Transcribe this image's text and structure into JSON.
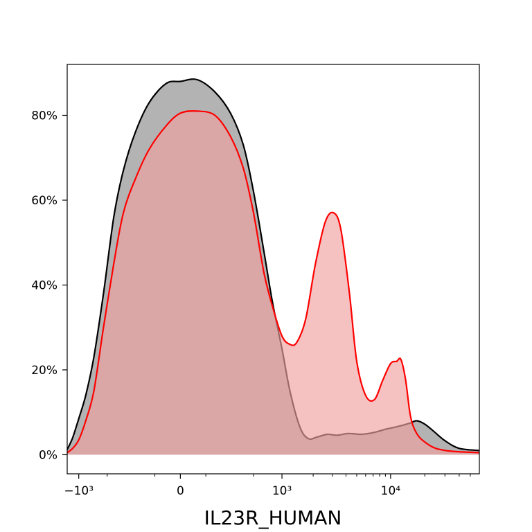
{
  "chart_data": {
    "type": "area",
    "title": "",
    "xlabel": "IL23R_HUMAN",
    "ylabel": "",
    "x_scale": "biexponential",
    "xlim": [
      -1300,
      60000
    ],
    "ylim": [
      -4.5,
      92
    ],
    "grid": false,
    "x_ticks": [
      {
        "value": -1000,
        "label": "−10³"
      },
      {
        "value": 0,
        "label": "0"
      },
      {
        "value": 1000,
        "label": "10³"
      },
      {
        "value": 10000,
        "label": "10⁴"
      }
    ],
    "y_ticks": [
      {
        "value": 0,
        "label": "0%"
      },
      {
        "value": 20,
        "label": "20%"
      },
      {
        "value": 40,
        "label": "40%"
      },
      {
        "value": 60,
        "label": "60%"
      },
      {
        "value": 80,
        "label": "80%"
      }
    ],
    "series": [
      {
        "line_color": "#000000",
        "fill_color": "#b3b3b3",
        "fill_opacity": 1,
        "x": [
          -1300,
          -1150,
          -1000,
          -850,
          -700,
          -550,
          -420,
          -320,
          -220,
          -130,
          -50,
          0,
          60,
          150,
          260,
          380,
          500,
          650,
          800,
          1000,
          1200,
          1500,
          1800,
          2200,
          2700,
          3300,
          4200,
          5500,
          7000,
          9000,
          11000,
          13000,
          15000,
          17000,
          20000,
          24000,
          30000,
          40000,
          60000
        ],
        "y": [
          1.2,
          4,
          8.5,
          14,
          23,
          38,
          56,
          67,
          76,
          83,
          87.5,
          88,
          88.4,
          85.5,
          80.5,
          73,
          62,
          48,
          36,
          25,
          15,
          6.5,
          3.8,
          4.2,
          4.8,
          4.6,
          5,
          4.8,
          5.2,
          6,
          6.5,
          7,
          7.5,
          8,
          7.2,
          5.5,
          3.3,
          1.5,
          1
        ]
      },
      {
        "line_color": "#ff0000",
        "fill_color": "#f0a0a0",
        "fill_opacity": 0.65,
        "x": [
          -1300,
          -1150,
          -1000,
          -850,
          -700,
          -550,
          -420,
          -320,
          -220,
          -130,
          -50,
          0,
          60,
          150,
          260,
          380,
          500,
          650,
          800,
          1000,
          1200,
          1400,
          1700,
          2100,
          2600,
          3100,
          3600,
          4300,
          5000,
          6000,
          7200,
          8500,
          10000,
          11300,
          12300,
          13500,
          15000,
          17000,
          20000,
          25000,
          35000,
          60000
        ],
        "y": [
          0.5,
          1.5,
          3.5,
          8,
          15,
          30,
          45,
          57,
          65,
          72,
          77.5,
          80.5,
          81,
          80,
          75,
          67.5,
          57,
          43,
          35,
          28,
          26,
          26.5,
          32,
          45,
          55,
          57,
          53,
          38,
          22,
          14,
          13,
          17.5,
          21.5,
          22,
          22.5,
          18,
          9,
          5,
          3,
          1.5,
          0.8,
          0.5
        ]
      }
    ]
  }
}
